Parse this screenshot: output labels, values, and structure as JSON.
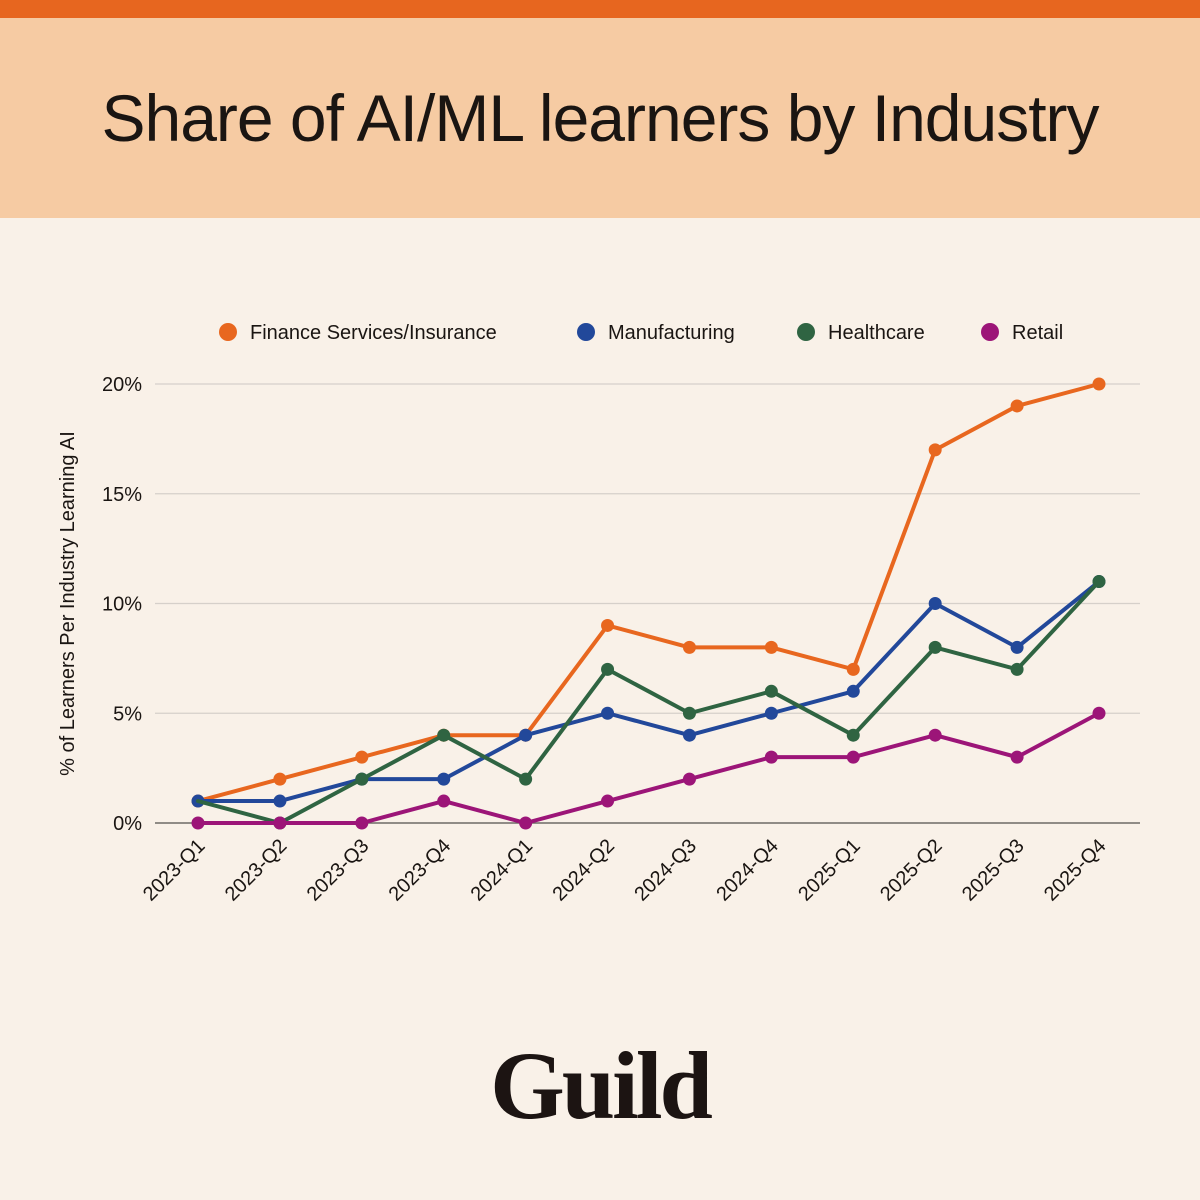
{
  "title": "Share of AI/ML learners by Industry",
  "brand": "Guild",
  "colors": {
    "accent_bar": "#e7661f",
    "title_band": "#f6cba3",
    "background": "#f9f1e8"
  },
  "chart_data": {
    "type": "line",
    "title": "",
    "xlabel": "",
    "ylabel": "% of Learners Per Industry Learning AI",
    "categories": [
      "2023-Q1",
      "2023-Q2",
      "2023-Q3",
      "2023-Q4",
      "2024-Q1",
      "2024-Q2",
      "2024-Q3",
      "2024-Q4",
      "2025-Q1",
      "2025-Q2",
      "2025-Q3",
      "2025-Q4"
    ],
    "ylim": [
      0,
      20
    ],
    "yticks": [
      0,
      5,
      10,
      15,
      20
    ],
    "ytick_labels": [
      "0%",
      "5%",
      "10%",
      "15%",
      "20%"
    ],
    "legend_position": "top",
    "grid": true,
    "series": [
      {
        "name": "Finance Services/Insurance",
        "color": "#e8671f",
        "values": [
          1,
          2,
          3,
          4,
          4,
          9,
          8,
          8,
          7,
          17,
          19,
          20
        ]
      },
      {
        "name": "Manufacturing",
        "color": "#22489a",
        "values": [
          1,
          1,
          2,
          2,
          4,
          5,
          4,
          5,
          6,
          10,
          8,
          11
        ]
      },
      {
        "name": "Healthcare",
        "color": "#2f6442",
        "values": [
          null,
          0,
          2,
          4,
          2,
          7,
          5,
          6,
          4,
          8,
          7,
          11
        ]
      },
      {
        "name": "Retail",
        "color": "#9c1578",
        "values": [
          0,
          0,
          0,
          1,
          0,
          1,
          2,
          3,
          3,
          4,
          3,
          5
        ]
      }
    ]
  }
}
